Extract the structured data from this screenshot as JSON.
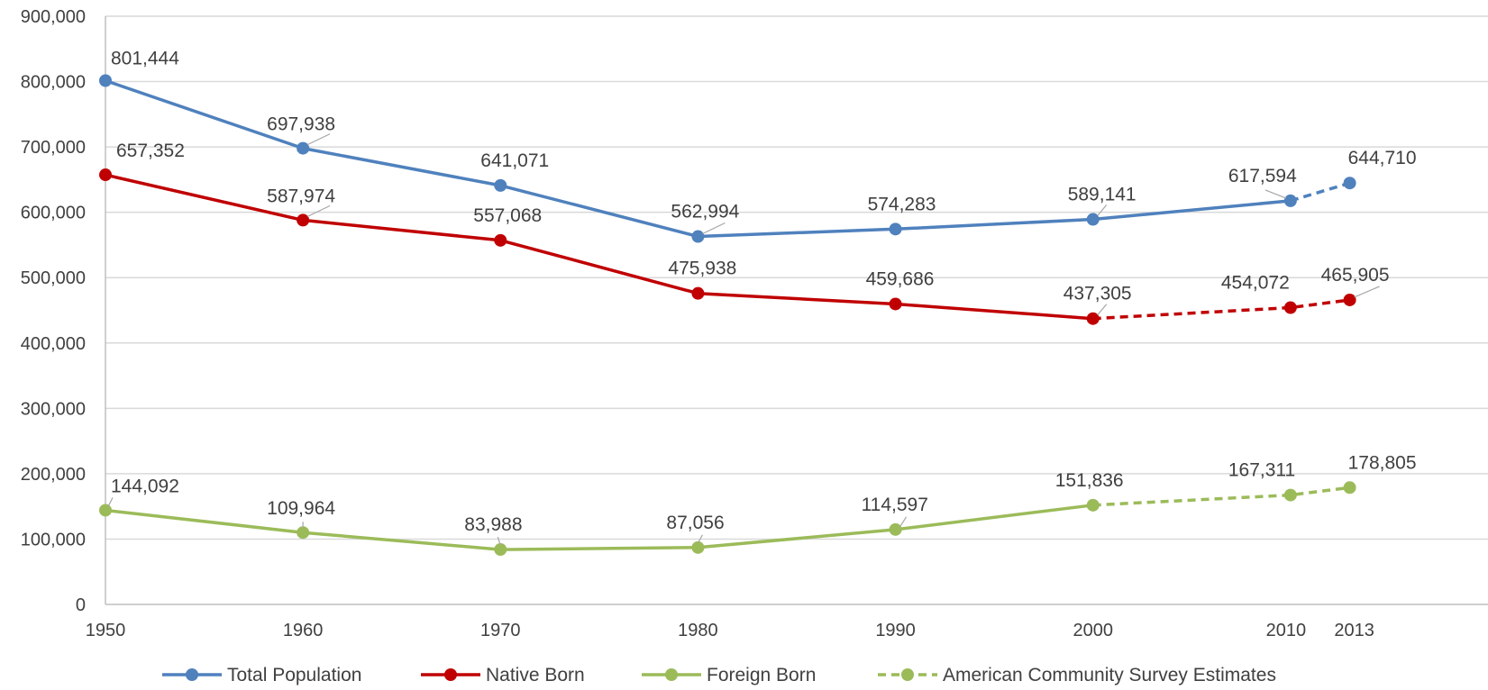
{
  "chart_data": {
    "type": "line",
    "title": "",
    "xlabel": "",
    "ylabel": "",
    "x": [
      1950,
      1960,
      1970,
      1980,
      1990,
      2000,
      2010,
      2013
    ],
    "x_tick_labels": [
      "1950",
      "1960",
      "1970",
      "1980",
      "1990",
      "2000",
      "2010",
      "2013"
    ],
    "xlim": [
      1950,
      2020
    ],
    "ylim": [
      0,
      900000
    ],
    "y_ticks": [
      0,
      100000,
      200000,
      300000,
      400000,
      500000,
      600000,
      700000,
      800000,
      900000
    ],
    "y_tick_labels": [
      "0",
      "100,000",
      "200,000",
      "300,000",
      "400,000",
      "500,000",
      "600,000",
      "700,000",
      "800,000",
      "900,000"
    ],
    "grid": true,
    "legend_position": "bottom",
    "series": [
      {
        "name": "Total Population",
        "color": "#4F81BD",
        "values": [
          801444,
          697938,
          641071,
          562994,
          574283,
          589141,
          617594,
          644710
        ],
        "labels": [
          "801,444",
          "697,938",
          "641,071",
          "562,994",
          "574,283",
          "589,141",
          "617,594",
          "644,710"
        ],
        "estimate_from_index": 6
      },
      {
        "name": "Native Born",
        "color": "#C00000",
        "values": [
          657352,
          587974,
          557068,
          475938,
          459686,
          437305,
          454072,
          465905
        ],
        "labels": [
          "657,352",
          "587,974",
          "557,068",
          "475,938",
          "459,686",
          "437,305",
          "454,072",
          "465,905"
        ],
        "estimate_from_index": 5
      },
      {
        "name": "Foreign Born",
        "color": "#9BBB59",
        "values": [
          144092,
          109964,
          83988,
          87056,
          114597,
          151836,
          167311,
          178805
        ],
        "labels": [
          "144,092",
          "109,964",
          "83,988",
          "87,056",
          "114,597",
          "151,836",
          "167,311",
          "178,805"
        ],
        "estimate_from_index": 5
      }
    ],
    "legend": [
      {
        "label": "Total Population",
        "color": "#4F81BD",
        "style": "solid"
      },
      {
        "label": "Native Born",
        "color": "#C00000",
        "style": "solid"
      },
      {
        "label": "Foreign Born",
        "color": "#9BBB59",
        "style": "solid"
      },
      {
        "label": "American Community Survey Estimates",
        "color": "#9BBB59",
        "style": "dashed"
      }
    ]
  }
}
